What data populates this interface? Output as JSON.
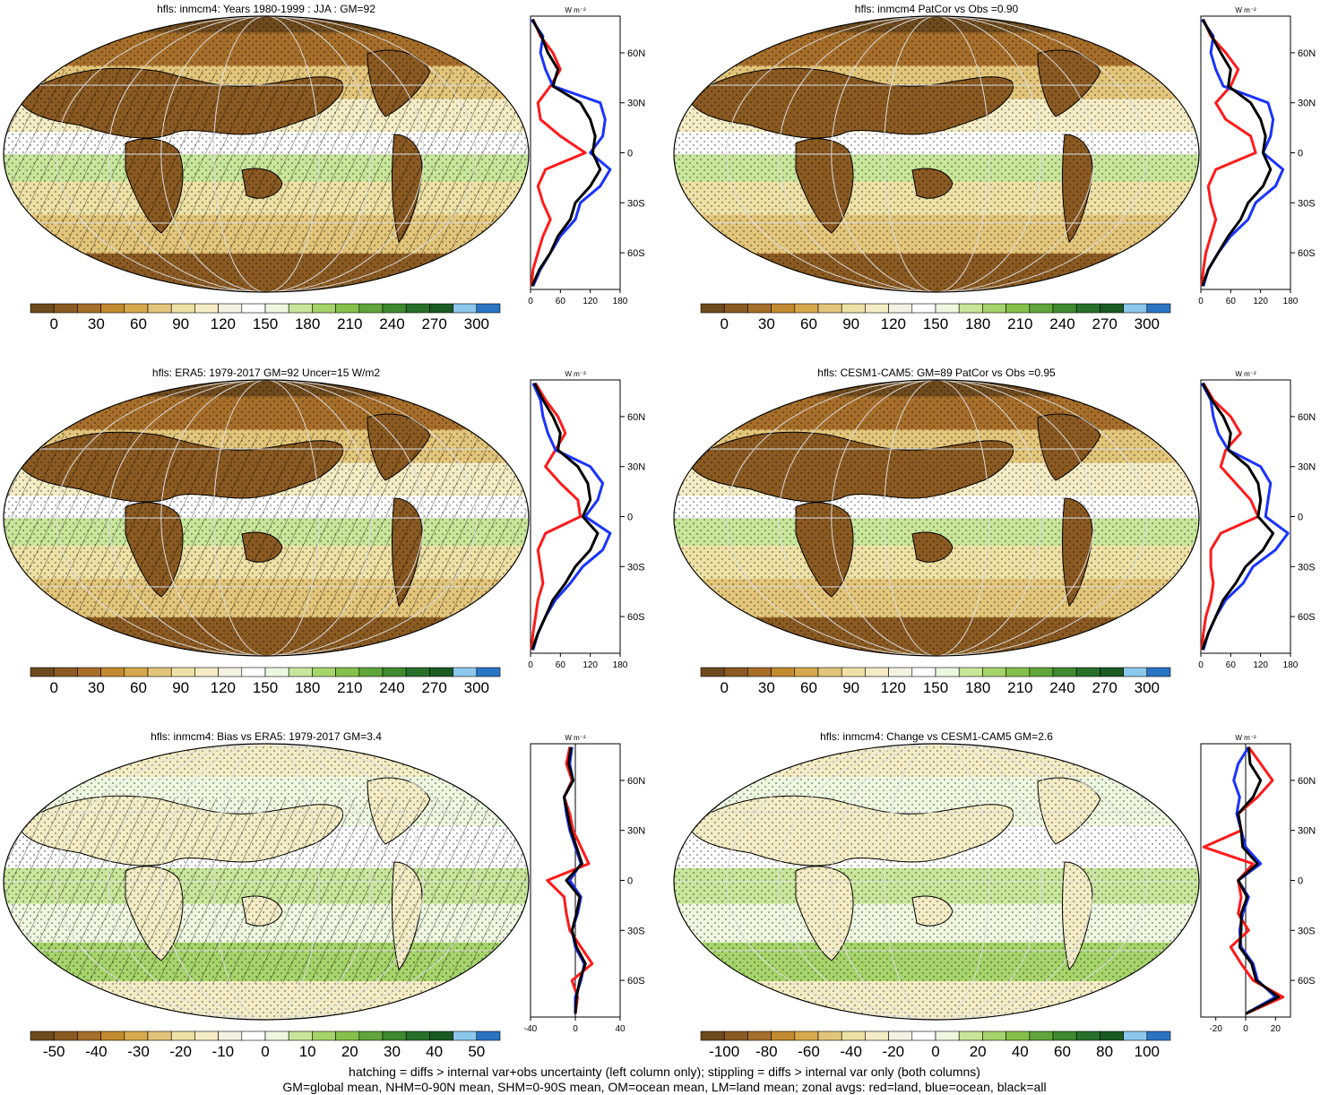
{
  "footer": {
    "line1": "hatching = diffs > internal var+obs uncertainty (left column only); stippling = diffs > internal var only (both columns)",
    "line2": "GM=global mean, NHM=0-90N mean, SHM=0-90S mean, OM=ocean mean, LM=land mean; zonal avgs: red=land, blue=ocean, black=all"
  },
  "colors": {
    "land_line": "#ff1a1a",
    "ocean_line": "#1a33ff",
    "all_line": "#000000",
    "palette": [
      "#6e4a1e",
      "#8a5a22",
      "#a66e2a",
      "#c28a2e",
      "#d6a94c",
      "#e3c57a",
      "#ede1a5",
      "#f4ecc4",
      "#f4f2e2",
      "#ffffff",
      "#eef7e0",
      "#c8e69a",
      "#a6d46a",
      "#84c04a",
      "#5fa53a",
      "#3f8a2e",
      "#28702a",
      "#1a5a22",
      "#8cc8ec",
      "#2a74c4"
    ]
  },
  "chart_data": [
    {
      "type": "heatmap",
      "title": "hfls: inmcm4: Years 1980-1999 : JJA : GM=92",
      "colorbar_ticks": [
        "0",
        "30",
        "60",
        "90",
        "120",
        "150",
        "180",
        "210",
        "240",
        "270",
        "300"
      ],
      "hatching": true,
      "zonal": {
        "units": "W m⁻²",
        "xticks": [
          0,
          60,
          120,
          180
        ],
        "xlim": [
          0,
          180
        ],
        "lat_ticks": [
          "60N",
          "30N",
          "0",
          "30S",
          "60S"
        ],
        "lat": [
          80,
          70,
          60,
          50,
          40,
          30,
          20,
          10,
          0,
          -10,
          -20,
          -30,
          -40,
          -50,
          -60,
          -70,
          -80
        ],
        "land": [
          5,
          20,
          45,
          60,
          40,
          15,
          20,
          60,
          110,
          30,
          15,
          25,
          40,
          25,
          15,
          5,
          2
        ],
        "ocean": [
          2,
          25,
          20,
          30,
          45,
          140,
          150,
          145,
          120,
          160,
          140,
          100,
          90,
          60,
          40,
          20,
          5
        ],
        "all": [
          4,
          22,
          35,
          55,
          45,
          100,
          120,
          130,
          125,
          140,
          120,
          90,
          80,
          55,
          40,
          18,
          3
        ]
      }
    },
    {
      "type": "heatmap",
      "title": "hfls: inmcm4 PatCor vs Obs =0.90",
      "colorbar_ticks": [
        "0",
        "30",
        "60",
        "90",
        "120",
        "150",
        "180",
        "210",
        "240",
        "270",
        "300"
      ],
      "hatching": false,
      "zonal": {
        "units": "W m⁻²",
        "xticks": [
          0,
          60,
          120,
          180
        ],
        "xlim": [
          0,
          180
        ],
        "lat_ticks": [
          "60N",
          "30N",
          "0",
          "30S",
          "60S"
        ],
        "lat": [
          80,
          70,
          60,
          50,
          40,
          30,
          20,
          10,
          0,
          -10,
          -20,
          -30,
          -40,
          -50,
          -60,
          -70,
          -80
        ],
        "land": [
          5,
          20,
          50,
          75,
          60,
          30,
          50,
          100,
          110,
          30,
          15,
          20,
          30,
          20,
          10,
          5,
          2
        ],
        "ocean": [
          2,
          25,
          20,
          30,
          45,
          135,
          145,
          140,
          125,
          165,
          150,
          110,
          95,
          60,
          35,
          15,
          5
        ],
        "all": [
          4,
          22,
          40,
          60,
          55,
          100,
          120,
          130,
          125,
          140,
          125,
          95,
          80,
          55,
          35,
          15,
          3
        ]
      }
    },
    {
      "type": "heatmap",
      "title": "hfls: ERA5: 1979-2017 GM=92 Uncer=15 W/m2",
      "colorbar_ticks": [
        "0",
        "30",
        "60",
        "90",
        "120",
        "150",
        "180",
        "210",
        "240",
        "270",
        "300"
      ],
      "hatching": true,
      "zonal": {
        "units": "W m⁻²",
        "xticks": [
          0,
          60,
          120,
          180
        ],
        "xlim": [
          0,
          180
        ],
        "lat_ticks": [
          "60N",
          "30N",
          "0",
          "30S",
          "60S"
        ],
        "lat": [
          80,
          70,
          60,
          50,
          40,
          30,
          20,
          10,
          0,
          -10,
          -20,
          -30,
          -40,
          -50,
          -60,
          -70,
          -80
        ],
        "land": [
          10,
          30,
          55,
          70,
          50,
          30,
          60,
          95,
          100,
          30,
          15,
          20,
          25,
          15,
          10,
          5,
          2
        ],
        "ocean": [
          5,
          20,
          25,
          35,
          50,
          120,
          145,
          135,
          110,
          160,
          145,
          105,
          80,
          50,
          30,
          15,
          5
        ],
        "all": [
          8,
          25,
          45,
          60,
          55,
          95,
          115,
          120,
          105,
          135,
          120,
          90,
          70,
          45,
          30,
          15,
          3
        ]
      }
    },
    {
      "type": "heatmap",
      "title": "hfls: CESM1-CAM5: GM=89 PatCor vs Obs =0.95",
      "colorbar_ticks": [
        "0",
        "30",
        "60",
        "90",
        "120",
        "150",
        "180",
        "210",
        "240",
        "270",
        "300"
      ],
      "hatching": false,
      "zonal": {
        "units": "W m⁻²",
        "xticks": [
          0,
          60,
          120,
          180
        ],
        "xlim": [
          0,
          180
        ],
        "lat_ticks": [
          "60N",
          "30N",
          "0",
          "30S",
          "60S"
        ],
        "lat": [
          80,
          70,
          60,
          50,
          40,
          30,
          20,
          10,
          0,
          -10,
          -20,
          -30,
          -40,
          -50,
          -60,
          -70,
          -80
        ],
        "land": [
          5,
          25,
          60,
          80,
          50,
          40,
          70,
          100,
          115,
          40,
          20,
          20,
          25,
          20,
          10,
          5,
          2
        ],
        "ocean": [
          2,
          20,
          25,
          35,
          55,
          120,
          140,
          135,
          130,
          175,
          150,
          105,
          85,
          50,
          30,
          15,
          5
        ],
        "all": [
          4,
          22,
          45,
          60,
          55,
          95,
          115,
          120,
          115,
          145,
          125,
          90,
          70,
          45,
          30,
          15,
          3
        ]
      }
    },
    {
      "type": "heatmap",
      "title": "hfls: inmcm4: Bias vs ERA5: 1979-2017 GM=3.4",
      "colorbar_ticks": [
        "-50",
        "-40",
        "-30",
        "-20",
        "-10",
        "0",
        "10",
        "20",
        "30",
        "40",
        "50"
      ],
      "hatching": true,
      "zonal": {
        "units": "W m⁻²",
        "xticks": [
          -40,
          0,
          40
        ],
        "xlim": [
          -40,
          40
        ],
        "lat_ticks": [
          "60N",
          "30N",
          "0",
          "30S",
          "60S"
        ],
        "lat": [
          80,
          70,
          60,
          50,
          40,
          30,
          20,
          10,
          0,
          -10,
          -20,
          -30,
          -40,
          -50,
          -60,
          -70,
          -80
        ],
        "land": [
          -5,
          -8,
          -3,
          -10,
          -5,
          -2,
          5,
          12,
          -25,
          -10,
          -8,
          -5,
          5,
          15,
          -3,
          2,
          0
        ],
        "ocean": [
          -3,
          -5,
          -2,
          -10,
          -8,
          -5,
          0,
          5,
          -5,
          5,
          2,
          -3,
          0,
          8,
          5,
          0,
          0
        ],
        "all": [
          -4,
          -6,
          -2,
          -10,
          -7,
          -4,
          1,
          6,
          -8,
          4,
          1,
          -3,
          1,
          9,
          4,
          1,
          0
        ]
      }
    },
    {
      "type": "heatmap",
      "title": "hfls: inmcm4: Change vs CESM1-CAM5 GM=2.6",
      "colorbar_ticks": [
        "-100",
        "-80",
        "-60",
        "-40",
        "-20",
        "0",
        "20",
        "40",
        "60",
        "80",
        "100"
      ],
      "hatching": false,
      "zonal": {
        "units": "W m⁻²",
        "xticks": [
          -20,
          0,
          20
        ],
        "xlim": [
          -30,
          30
        ],
        "lat_ticks": [
          "60N",
          "30N",
          "0",
          "30S",
          "60S"
        ],
        "lat": [
          80,
          70,
          60,
          50,
          40,
          30,
          20,
          10,
          0,
          -10,
          -20,
          -30,
          -40,
          -50,
          -60,
          -70,
          -80
        ],
        "land": [
          2,
          10,
          18,
          8,
          -5,
          -3,
          -28,
          5,
          -5,
          -3,
          -5,
          2,
          -10,
          -3,
          5,
          25,
          0
        ],
        "ocean": [
          2,
          -5,
          -8,
          -4,
          -6,
          -3,
          0,
          10,
          -5,
          2,
          -2,
          -4,
          -3,
          5,
          8,
          20,
          0
        ],
        "all": [
          2,
          3,
          10,
          5,
          -5,
          -3,
          -2,
          8,
          -5,
          1,
          -3,
          -3,
          -4,
          4,
          7,
          22,
          0
        ]
      }
    }
  ]
}
